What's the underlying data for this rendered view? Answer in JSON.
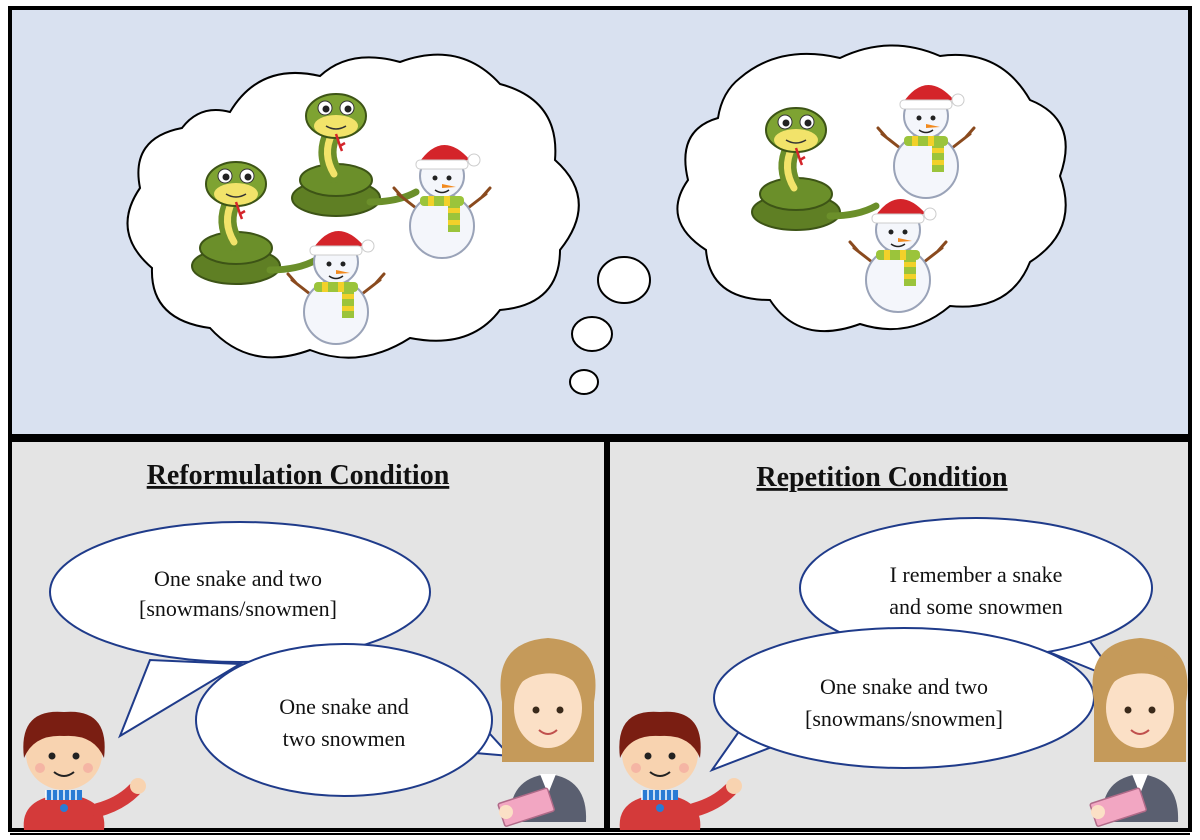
{
  "colors": {
    "top_panel_bg": "#d9e1f0",
    "bottom_panel_bg": "#e4e4e4",
    "panel_border": "#000000",
    "bubble_outline": "#1f3b8a",
    "cloud_outline": "#000000",
    "snake_green": "#6b8f2a",
    "snake_belly": "#f2e36a",
    "snowman_white": "#f4f6fb",
    "hat_red": "#d4242a",
    "scarf_green": "#9bc43b",
    "scarf_yellow": "#f2d12a",
    "boy_hair": "#7a1e12",
    "boy_shirt": "#d43a3a",
    "woman_hair": "#c59a5a",
    "woman_suit": "#5a5f70",
    "clipboard_pink": "#f2a6c2"
  },
  "top_panel": {
    "left_cloud": {
      "icons": [
        "snake-icon",
        "snake-icon",
        "snowman-icon",
        "snowman-icon"
      ]
    },
    "right_cloud": {
      "icons": [
        "snake-icon",
        "snowman-icon",
        "snowman-icon"
      ]
    }
  },
  "reformulation": {
    "title": "Reformulation Condition",
    "child_line1": "One snake and two",
    "child_line2": "[snowmans/snowmen]",
    "adult_line1": "One snake and",
    "adult_line2": "two snowmen"
  },
  "repetition": {
    "title": "Repetition Condition",
    "adult_line1": "I remember a snake",
    "adult_line2": "and some snowmen",
    "child_line1": "One snake and two",
    "child_line2": "[snowmans/snowmen]"
  }
}
